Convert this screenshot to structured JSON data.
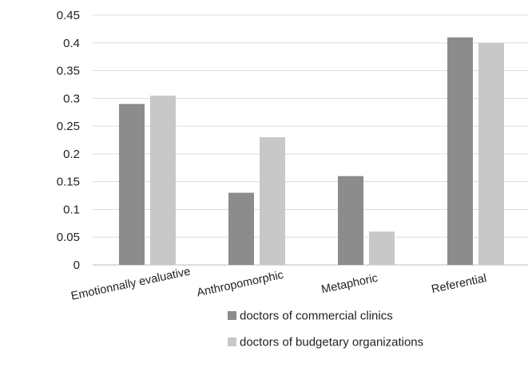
{
  "chart_data": {
    "type": "bar",
    "title": "",
    "xlabel": "",
    "ylabel": "",
    "categories": [
      "Emotionnally evaluative",
      "Anthropomorphic",
      "Metaphoric",
      "Referential"
    ],
    "series": [
      {
        "name": "doctors of commercial clinics",
        "color": "#8c8c8c",
        "values": [
          0.29,
          0.13,
          0.16,
          0.41
        ]
      },
      {
        "name": "doctors of budgetary organizations",
        "color": "#c8c8c8",
        "values": [
          0.305,
          0.23,
          0.06,
          0.4
        ]
      }
    ],
    "ylim": [
      0,
      0.45
    ],
    "yticks": [
      "0",
      "0.05",
      "0.1",
      "0.15",
      "0.2",
      "0.25",
      "0.3",
      "0.35",
      "0.4",
      "0.45"
    ],
    "grid": true,
    "legend_position": "bottom"
  }
}
